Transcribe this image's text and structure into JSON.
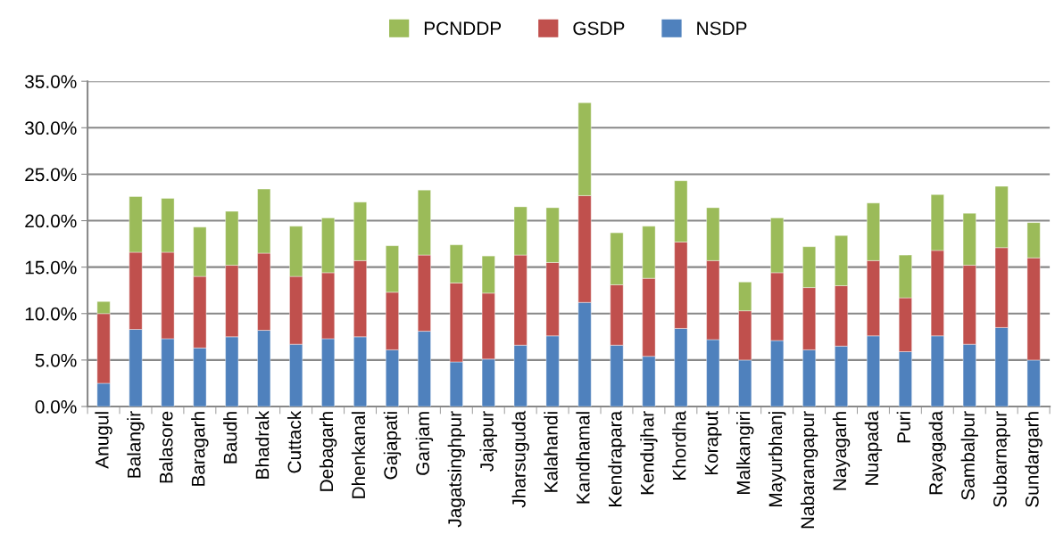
{
  "chart_data": {
    "type": "bar",
    "stacked": true,
    "legend": "top",
    "grid": "y",
    "categories": [
      "Anugul",
      "Balangir",
      "Balasore",
      "Baragarh",
      "Baudh",
      "Bhadrak",
      "Cuttack",
      "Debagarh",
      "Dhenkanal",
      "Gajapati",
      "Ganjam",
      "Jagatsinghpur",
      "Jajapur",
      "Jharsuguda",
      "Kalahandi",
      "Kandhamal",
      "Kendrapara",
      "Kendujhar",
      "Khordha",
      "Koraput",
      "Malkangiri",
      "Mayurbhanj",
      "Nabarangapur",
      "Nayagarh",
      "Nuapada",
      "Puri",
      "Rayagada",
      "Sambalpur",
      "Subarnapur",
      "Sundargarh"
    ],
    "ylim": [
      0,
      35
    ],
    "yticks": [
      {
        "value": 0,
        "label": "0.0%"
      },
      {
        "value": 5,
        "label": "5.0%"
      },
      {
        "value": 10,
        "label": "10.0%"
      },
      {
        "value": 15,
        "label": "15.0%"
      },
      {
        "value": 20,
        "label": "20.0%"
      },
      {
        "value": 25,
        "label": "25.0%"
      },
      {
        "value": 30,
        "label": "30.0%"
      },
      {
        "value": 35,
        "label": "35.0%"
      }
    ],
    "series": [
      {
        "name": "NSDP",
        "color": "#4f81bd",
        "values": [
          2.5,
          8.3,
          7.3,
          6.3,
          7.5,
          8.2,
          6.7,
          7.3,
          7.5,
          6.1,
          8.1,
          4.8,
          5.1,
          6.6,
          7.6,
          11.2,
          6.6,
          5.4,
          8.4,
          7.2,
          5.0,
          7.1,
          6.1,
          6.5,
          7.6,
          5.9,
          7.6,
          6.7,
          8.5,
          5.0
        ]
      },
      {
        "name": "GSDP",
        "color": "#c0504d",
        "values": [
          7.5,
          8.3,
          9.3,
          7.7,
          7.7,
          8.3,
          7.3,
          7.1,
          8.2,
          6.2,
          8.2,
          8.5,
          7.1,
          9.7,
          7.9,
          11.5,
          6.5,
          8.4,
          9.3,
          8.5,
          5.3,
          7.3,
          6.7,
          6.5,
          8.1,
          5.8,
          9.2,
          8.5,
          8.6,
          11.0
        ]
      },
      {
        "name": "PCNDDP",
        "color": "#9bbb59",
        "values": [
          1.3,
          6.0,
          5.8,
          5.3,
          5.8,
          6.9,
          5.4,
          5.9,
          6.3,
          5.0,
          7.0,
          4.1,
          4.0,
          5.2,
          5.9,
          10.0,
          5.6,
          5.6,
          6.6,
          5.7,
          3.1,
          5.9,
          4.4,
          5.4,
          6.2,
          4.6,
          6.0,
          5.6,
          6.6,
          3.8
        ]
      }
    ]
  }
}
